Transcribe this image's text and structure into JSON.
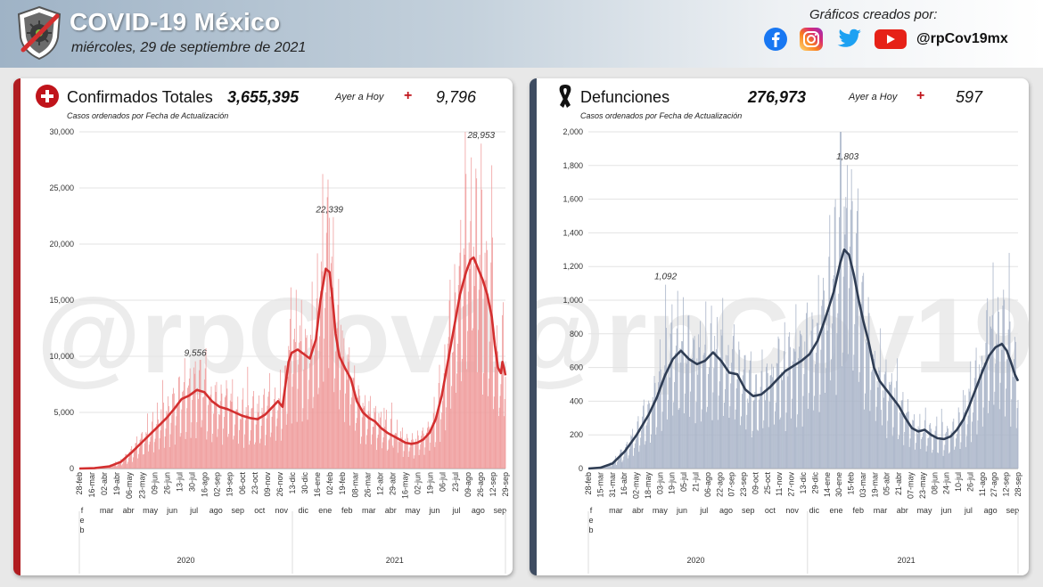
{
  "header": {
    "title": "COVID-19 México",
    "date": "miércoles, 29 de septiembre de 2021",
    "credits_title": "Gráficos creados por:",
    "handle": "@rpCov19mx",
    "social_icons": [
      "facebook-icon",
      "instagram-icon",
      "twitter-icon",
      "youtube-icon"
    ]
  },
  "watermark": "@rpCov19mx",
  "chart_data": [
    {
      "type": "bar",
      "title": "Confirmados Totales",
      "total": "3,655,395",
      "ayer_label": "Ayer a Hoy",
      "plus": "+",
      "delta": "9,796",
      "subtitle": "Casos ordenados por Fecha de Actualización",
      "bar_color": "#ef9a9a",
      "line_color": "#d32f2f",
      "ylim": [
        0,
        30000
      ],
      "yticks": [
        "0",
        "5,000",
        "10,000",
        "15,000",
        "20,000",
        "25,000",
        "30,000"
      ],
      "ytick_values": [
        0,
        5000,
        10000,
        15000,
        20000,
        25000,
        30000
      ],
      "xticks": [
        "28-feb",
        "16-mar",
        "02-abr",
        "19-abr",
        "06-may",
        "23-may",
        "09-jun",
        "26-jun",
        "13-jul",
        "30-jul",
        "16-ago",
        "02-sep",
        "19-sep",
        "06-oct",
        "23-oct",
        "09-nov",
        "26-nov",
        "13-dic",
        "30-dic",
        "16-ene",
        "02-feb",
        "19-feb",
        "08-mar",
        "26-mar",
        "12-abr",
        "29-abr",
        "16-may",
        "02-jun",
        "19-jun",
        "06-jul",
        "23-jul",
        "09-ago",
        "26-ago",
        "12-sep",
        "29-sep"
      ],
      "months": [
        "f e b",
        "mar",
        "abr",
        "may",
        "jun",
        "jul",
        "ago",
        "sep",
        "oct",
        "nov",
        "dic",
        "ene",
        "feb",
        "mar",
        "abr",
        "may",
        "jun",
        "jul",
        "ago",
        "sep"
      ],
      "years": [
        "2020",
        "2021"
      ],
      "peaks": [
        {
          "label": "9,556",
          "day": 153,
          "value": 9556
        },
        {
          "label": "22,339",
          "day": 330,
          "value": 22339
        },
        {
          "label": "28,953",
          "day": 530,
          "value": 28953
        }
      ],
      "avg_control": [
        [
          0,
          0
        ],
        [
          20,
          30
        ],
        [
          40,
          200
        ],
        [
          55,
          600
        ],
        [
          70,
          1500
        ],
        [
          85,
          2500
        ],
        [
          100,
          3500
        ],
        [
          115,
          4500
        ],
        [
          125,
          5300
        ],
        [
          135,
          6200
        ],
        [
          145,
          6500
        ],
        [
          155,
          7000
        ],
        [
          165,
          6800
        ],
        [
          175,
          6000
        ],
        [
          185,
          5500
        ],
        [
          195,
          5300
        ],
        [
          205,
          5000
        ],
        [
          215,
          4700
        ],
        [
          225,
          4500
        ],
        [
          235,
          4400
        ],
        [
          245,
          4800
        ],
        [
          255,
          5500
        ],
        [
          262,
          6000
        ],
        [
          268,
          5500
        ],
        [
          272,
          7500
        ],
        [
          276,
          9500
        ],
        [
          280,
          10300
        ],
        [
          288,
          10600
        ],
        [
          296,
          10200
        ],
        [
          304,
          9800
        ],
        [
          312,
          11500
        ],
        [
          318,
          15000
        ],
        [
          325,
          17800
        ],
        [
          330,
          17500
        ],
        [
          334,
          15000
        ],
        [
          338,
          12000
        ],
        [
          343,
          10000
        ],
        [
          350,
          9000
        ],
        [
          358,
          8000
        ],
        [
          366,
          6000
        ],
        [
          374,
          5000
        ],
        [
          382,
          4500
        ],
        [
          390,
          4200
        ],
        [
          398,
          3600
        ],
        [
          406,
          3200
        ],
        [
          414,
          2900
        ],
        [
          422,
          2600
        ],
        [
          430,
          2300
        ],
        [
          438,
          2200
        ],
        [
          446,
          2300
        ],
        [
          454,
          2600
        ],
        [
          462,
          3200
        ],
        [
          470,
          4400
        ],
        [
          478,
          6500
        ],
        [
          486,
          9500
        ],
        [
          494,
          12500
        ],
        [
          502,
          15500
        ],
        [
          510,
          17500
        ],
        [
          516,
          18600
        ],
        [
          520,
          18800
        ],
        [
          526,
          17800
        ],
        [
          532,
          16800
        ],
        [
          538,
          15500
        ],
        [
          544,
          13500
        ],
        [
          548,
          11000
        ],
        [
          552,
          9000
        ],
        [
          556,
          8500
        ],
        [
          558,
          9500
        ],
        [
          560,
          9000
        ],
        [
          562,
          8300
        ]
      ]
    },
    {
      "type": "bar",
      "title": "Defunciones",
      "total": "276,973",
      "ayer_label": "Ayer a Hoy",
      "plus": "+",
      "delta": "597",
      "subtitle": "Casos ordenados por Fecha de Actualización",
      "bar_color": "#a9b4c8",
      "line_color": "#2f3d54",
      "ylim": [
        0,
        2000
      ],
      "yticks": [
        "0",
        "200",
        "400",
        "600",
        "800",
        "1,000",
        "1,200",
        "1,400",
        "1,600",
        "1,800",
        "2,000"
      ],
      "ytick_values": [
        0,
        200,
        400,
        600,
        800,
        1000,
        1200,
        1400,
        1600,
        1800,
        2000
      ],
      "xticks": [
        "28-feb",
        "15-mar",
        "31-mar",
        "16-abr",
        "02-may",
        "18-may",
        "03-jun",
        "19-jun",
        "05-jul",
        "21-jul",
        "06-ago",
        "22-ago",
        "07-sep",
        "23-sep",
        "09-oct",
        "25-oct",
        "11-nov",
        "27-nov",
        "13-dic",
        "29-dic",
        "14-ene",
        "30-ene",
        "15-feb",
        "03-mar",
        "19-mar",
        "05-abr",
        "21-abr",
        "07-may",
        "23-may",
        "08-jun",
        "24-jun",
        "10-jul",
        "26-jul",
        "11-ago",
        "27-ago",
        "12-sep",
        "28-sep"
      ],
      "months": [
        "f e b",
        "mar",
        "abr",
        "may",
        "jun",
        "jul",
        "ago",
        "sep",
        "oct",
        "nov",
        "dic",
        "ene",
        "feb",
        "mar",
        "abr",
        "may",
        "jun",
        "jul",
        "ago",
        "sep"
      ],
      "years": [
        "2020",
        "2021"
      ],
      "peaks": [
        {
          "label": "1,092",
          "day": 96,
          "value": 1092
        },
        {
          "label": "1,803",
          "day": 322,
          "value": 1803
        }
      ],
      "avg_control": [
        [
          0,
          0
        ],
        [
          15,
          5
        ],
        [
          30,
          30
        ],
        [
          45,
          100
        ],
        [
          60,
          200
        ],
        [
          75,
          320
        ],
        [
          85,
          420
        ],
        [
          95,
          550
        ],
        [
          105,
          650
        ],
        [
          115,
          700
        ],
        [
          125,
          650
        ],
        [
          135,
          620
        ],
        [
          145,
          640
        ],
        [
          155,
          690
        ],
        [
          165,
          640
        ],
        [
          175,
          570
        ],
        [
          185,
          560
        ],
        [
          195,
          470
        ],
        [
          205,
          430
        ],
        [
          215,
          440
        ],
        [
          225,
          480
        ],
        [
          235,
          530
        ],
        [
          245,
          580
        ],
        [
          255,
          610
        ],
        [
          265,
          640
        ],
        [
          275,
          680
        ],
        [
          285,
          760
        ],
        [
          295,
          900
        ],
        [
          305,
          1050
        ],
        [
          313,
          1220
        ],
        [
          318,
          1300
        ],
        [
          324,
          1270
        ],
        [
          330,
          1150
        ],
        [
          336,
          1000
        ],
        [
          342,
          870
        ],
        [
          348,
          760
        ],
        [
          355,
          600
        ],
        [
          362,
          520
        ],
        [
          370,
          470
        ],
        [
          378,
          420
        ],
        [
          386,
          370
        ],
        [
          394,
          300
        ],
        [
          402,
          240
        ],
        [
          410,
          220
        ],
        [
          418,
          230
        ],
        [
          426,
          200
        ],
        [
          434,
          180
        ],
        [
          442,
          175
        ],
        [
          450,
          190
        ],
        [
          458,
          230
        ],
        [
          466,
          290
        ],
        [
          474,
          380
        ],
        [
          482,
          480
        ],
        [
          490,
          580
        ],
        [
          498,
          670
        ],
        [
          506,
          720
        ],
        [
          514,
          740
        ],
        [
          520,
          700
        ],
        [
          526,
          620
        ],
        [
          530,
          560
        ],
        [
          534,
          520
        ]
      ]
    }
  ]
}
